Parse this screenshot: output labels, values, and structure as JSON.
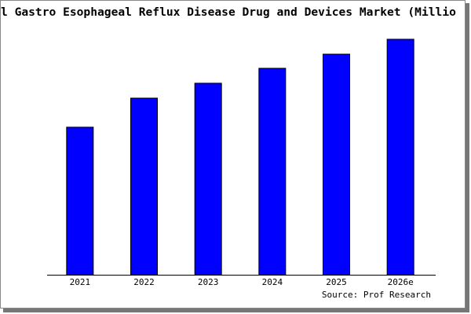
{
  "chart_data": {
    "type": "bar",
    "title": "l Gastro Esophageal Reflux Disease Drug and Devices Market (Millio",
    "categories": [
      "2021",
      "2022",
      "2023",
      "2024",
      "2025",
      "2026e"
    ],
    "values": [
      188,
      225,
      244,
      263,
      281,
      300
    ],
    "color": "#0000ff",
    "ylim": [
      0,
      305
    ],
    "source": "Source: Prof Research"
  }
}
